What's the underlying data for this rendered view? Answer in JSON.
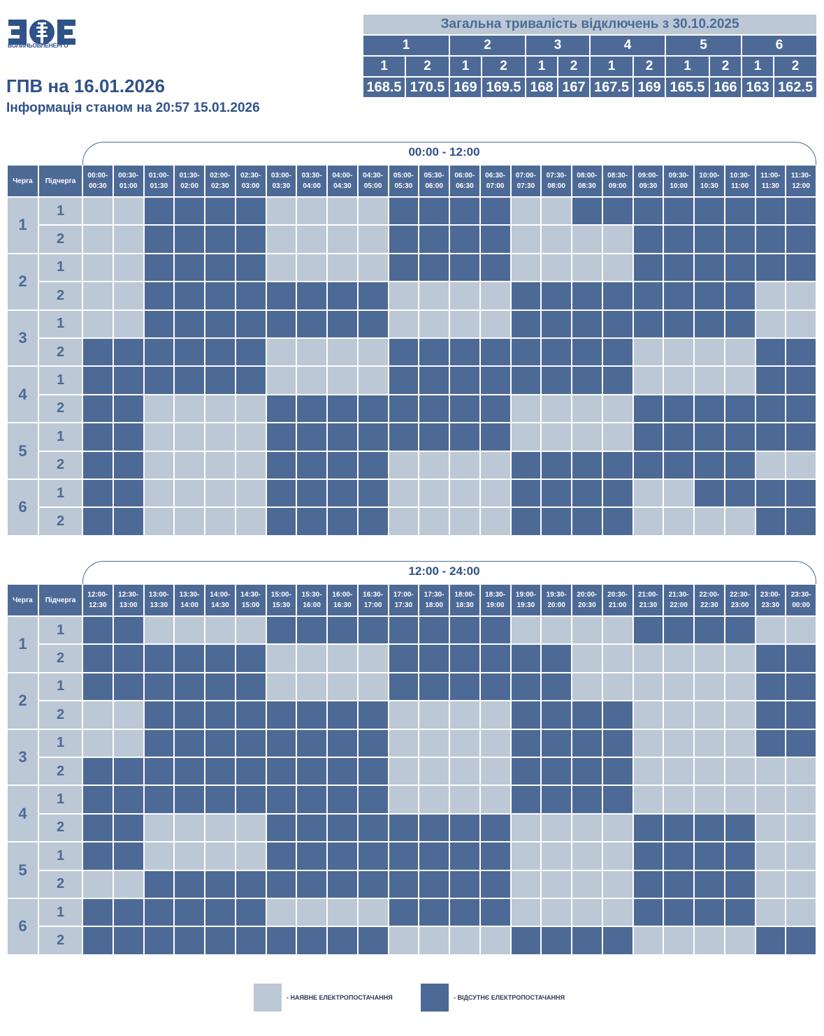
{
  "logo": {
    "text": "ВОЛИНЬОБЛЕНЕРГО"
  },
  "header": {
    "title": "ГПВ на 16.01.2026",
    "subtitle": "Інформація станом на 20:57 15.01.2026"
  },
  "summary": {
    "caption": "Загальна тривалість відключень з 30.10.2025",
    "groups": [
      "1",
      "2",
      "3",
      "4",
      "5",
      "6"
    ],
    "subgroups": [
      "1",
      "2",
      "1",
      "2",
      "1",
      "2",
      "1",
      "2",
      "1",
      "2",
      "1",
      "2"
    ],
    "values": [
      "168.5",
      "170.5",
      "169",
      "169.5",
      "168",
      "167",
      "167.5",
      "169",
      "165.5",
      "166",
      "163",
      "162.5"
    ]
  },
  "colors": {
    "on": "#bcc8d6",
    "off": "#4d6a96"
  },
  "tables": [
    {
      "range": "00:00 - 12:00",
      "queue_header": "Черга",
      "subqueue_header": "Підчерга",
      "times": [
        "00:00-\n00:30",
        "00:30-\n01:00",
        "01:00-\n01:30",
        "01:30-\n02:00",
        "02:00-\n02:30",
        "02:30-\n03:00",
        "03:00-\n03:30",
        "03:30-\n04:00",
        "04:00-\n04:30",
        "04:30-\n05:00",
        "05:00-\n05:30",
        "05:30-\n06:00",
        "06:00-\n06:30",
        "06:30-\n07:00",
        "07:00-\n07:30",
        "07:30-\n08:00",
        "08:00-\n08:30",
        "08:30-\n09:00",
        "09:00-\n09:30",
        "09:30-\n10:00",
        "10:00-\n10:30",
        "10:30-\n11:00",
        "11:00-\n11:30",
        "11:30-\n12:00"
      ],
      "rows": [
        {
          "queue": "1",
          "sub": "1",
          "slots": "LLDDDDLLLLDDDDLLDDDDDDDD"
        },
        {
          "queue": "1",
          "sub": "2",
          "slots": "LLDDDDLLLLDDDDLLLLDDDDDD"
        },
        {
          "queue": "2",
          "sub": "1",
          "slots": "LLDDDDLLLLDDDDLLLLDDDDDD"
        },
        {
          "queue": "2",
          "sub": "2",
          "slots": "LLDDDDDDDDLLLLDDDDDDDDLL"
        },
        {
          "queue": "3",
          "sub": "1",
          "slots": "LLDDDDDDDDLLLLDDDDDDDDLL"
        },
        {
          "queue": "3",
          "sub": "2",
          "slots": "DDDDDDLLLLDDDDDDDDLLLLDD"
        },
        {
          "queue": "4",
          "sub": "1",
          "slots": "DDDDDDLLLLDDDDDDDDLLLLDD"
        },
        {
          "queue": "4",
          "sub": "2",
          "slots": "DDLLLLDDDDDDDDLLLLDDDDDD"
        },
        {
          "queue": "5",
          "sub": "1",
          "slots": "DDLLLLDDDDDDDDLLLLDDDDDD"
        },
        {
          "queue": "5",
          "sub": "2",
          "slots": "DDLLLLDDDDLLLLDDDDDDDDLL"
        },
        {
          "queue": "6",
          "sub": "1",
          "slots": "DDLLLLDDDDLLLLDDDDLLDDDD"
        },
        {
          "queue": "6",
          "sub": "2",
          "slots": "DDLLLLDDDDLLLLDDDDLLLLDD"
        }
      ]
    },
    {
      "range": "12:00 - 24:00",
      "queue_header": "Черга",
      "subqueue_header": "Підчерга",
      "times": [
        "12:00-\n12:30",
        "12:30-\n13:00",
        "13:00-\n13:30",
        "13:30-\n14:00",
        "14:00-\n14:30",
        "14:30-\n15:00",
        "15:00-\n15:30",
        "15:30-\n16:00",
        "16:00-\n16:30",
        "16:30-\n17:00",
        "17:00-\n17:30",
        "17:30-\n18:00",
        "18:00-\n18:30",
        "18:30-\n19:00",
        "19:00-\n19:30",
        "19:30-\n20:00",
        "20:00-\n20:30",
        "20:30-\n21:00",
        "21:00-\n21:30",
        "21:30-\n22:00",
        "22:00-\n22:30",
        "22:30-\n23:00",
        "23:00-\n23:30",
        "23:30-\n00:00"
      ],
      "rows": [
        {
          "queue": "1",
          "sub": "1",
          "slots": "DDLLLLDDDDDDDDLLLLDDDDLL"
        },
        {
          "queue": "1",
          "sub": "2",
          "slots": "DDDDDDLLLLDDDDDDLLLLLLDD"
        },
        {
          "queue": "2",
          "sub": "1",
          "slots": "DDDDDDLLLLDDDDDDLLLLLLDD"
        },
        {
          "queue": "2",
          "sub": "2",
          "slots": "LLDDDDDDDDLLLLDDDDLLLLDD"
        },
        {
          "queue": "3",
          "sub": "1",
          "slots": "LLDDDDDDDDLLLLDDDDLLLLDD"
        },
        {
          "queue": "3",
          "sub": "2",
          "slots": "DDDDDDDDDDLLLLDDDDLLLLLL"
        },
        {
          "queue": "4",
          "sub": "1",
          "slots": "DDDDDDDDDDLLLLDDDDLLLLLL"
        },
        {
          "queue": "4",
          "sub": "2",
          "slots": "DDLLLLDDDDDDDDLLLLDDDDLL"
        },
        {
          "queue": "5",
          "sub": "1",
          "slots": "DDLLLLDDDDDDDDLLLLDDDDLL"
        },
        {
          "queue": "5",
          "sub": "2",
          "slots": "LLDDDDDDDDDDDDLLLLDDDDLL"
        },
        {
          "queue": "6",
          "sub": "1",
          "slots": "DDDDDDLLLLDDDDLLLLDDDDLL"
        },
        {
          "queue": "6",
          "sub": "2",
          "slots": "DDDDDDDDDDLLLLDDDDLLLLDD"
        }
      ]
    }
  ],
  "legend": {
    "on": "- НАЯВНЕ ЕЛЕКТРОПОСТАЧАННЯ",
    "off": "- ВІДСУТНЄ ЕЛЕКТРОПОСТАЧАННЯ"
  }
}
